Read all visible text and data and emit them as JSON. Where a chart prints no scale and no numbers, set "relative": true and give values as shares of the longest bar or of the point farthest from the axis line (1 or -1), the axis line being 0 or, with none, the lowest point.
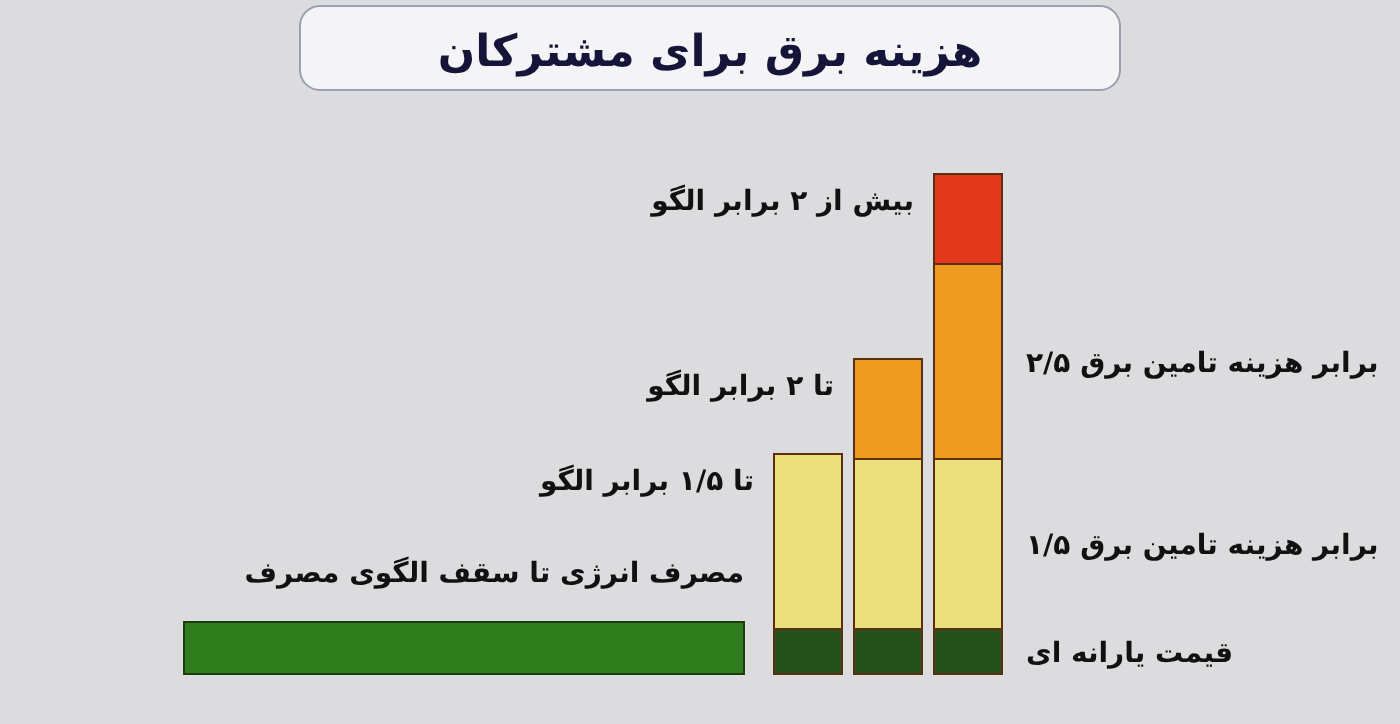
{
  "chart_data": [
    {
      "type": "bar",
      "title": "هزینه برق برای مشترکان",
      "orientation": "horizontal",
      "relative": true,
      "categories": [
        "مصرف انرژی تا سقف الگوی مصرف"
      ],
      "values": [
        1
      ],
      "color": "#2f7d1c"
    },
    {
      "type": "bar",
      "stacked": true,
      "relative": true,
      "categories": [
        null,
        null,
        null
      ],
      "annotations": [
        "تا ۱/۵ برابر الگو",
        "تا ۲ برابر الگو",
        "بیش از ۲ برابر الگو"
      ],
      "series": [
        {
          "name": "قیمت یارانه ای",
          "color": "#24501a",
          "values": [
            0.09,
            0.09,
            0.09
          ]
        },
        {
          "name": "۱/۵ برابر هزینه تامین برق",
          "color": "#ece07c",
          "values": [
            0.35,
            0.34,
            0.34
          ]
        },
        {
          "name": "۲/۵ برابر هزینه تامین برق",
          "color": "#ee9b22",
          "values": [
            null,
            0.2,
            0.39
          ]
        },
        {
          "color": "#e2381b",
          "values": [
            null,
            null,
            0.18
          ]
        }
      ]
    }
  ]
}
